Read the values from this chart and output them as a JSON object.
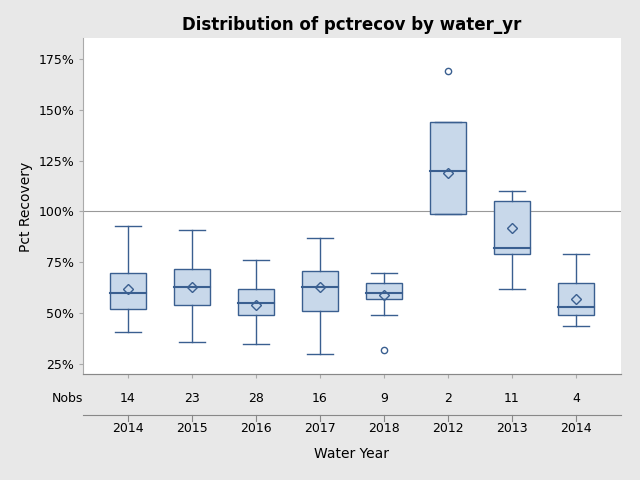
{
  "title": "Distribution of pctrecov by water_yr",
  "xlabel": "Water Year",
  "ylabel": "Pct Recovery",
  "x_labels": [
    "2014",
    "2015",
    "2016",
    "2017",
    "2018",
    "2012",
    "2013",
    "2014"
  ],
  "nobs": [
    14,
    23,
    28,
    16,
    9,
    2,
    11,
    4
  ],
  "boxes": [
    {
      "q1": 52,
      "median": 60,
      "q3": 70,
      "mean": 62,
      "whisker_low": 41,
      "whisker_high": 93,
      "outliers": []
    },
    {
      "q1": 54,
      "median": 63,
      "q3": 72,
      "mean": 63,
      "whisker_low": 36,
      "whisker_high": 91,
      "outliers": []
    },
    {
      "q1": 49,
      "median": 55,
      "q3": 62,
      "mean": 54,
      "whisker_low": 35,
      "whisker_high": 76,
      "outliers": []
    },
    {
      "q1": 51,
      "median": 63,
      "q3": 71,
      "mean": 63,
      "whisker_low": 30,
      "whisker_high": 87,
      "outliers": []
    },
    {
      "q1": 57,
      "median": 60,
      "q3": 65,
      "mean": 59,
      "whisker_low": 49,
      "whisker_high": 70,
      "outliers": [
        32
      ]
    },
    {
      "q1": 99,
      "median": 120,
      "q3": 144,
      "mean": 119,
      "whisker_low": 99,
      "whisker_high": 144,
      "outliers": [
        169
      ]
    },
    {
      "q1": 79,
      "median": 82,
      "q3": 105,
      "mean": 92,
      "whisker_low": 62,
      "whisker_high": 110,
      "outliers": []
    },
    {
      "q1": 49,
      "median": 53,
      "q3": 65,
      "mean": 57,
      "whisker_low": 44,
      "whisker_high": 79,
      "outliers": []
    }
  ],
  "box_color": "#c8d8ea",
  "box_edge_color": "#3a5f90",
  "median_color": "#3a5f90",
  "whisker_color": "#3a5f90",
  "mean_marker_color": "#3a5f90",
  "outlier_color": "#3a5f90",
  "hline_y": 100,
  "hline_color": "#999999",
  "ylim": [
    20,
    185
  ],
  "yticks": [
    25,
    50,
    75,
    100,
    125,
    150,
    175
  ],
  "ytick_labels": [
    "25%",
    "50%",
    "75%",
    "100%",
    "125%",
    "150%",
    "175%"
  ],
  "figure_bg_color": "#e8e8e8",
  "plot_bg_color": "#ffffff",
  "title_fontsize": 12,
  "label_fontsize": 10,
  "tick_fontsize": 9,
  "nobs_fontsize": 9,
  "box_width": 0.55
}
